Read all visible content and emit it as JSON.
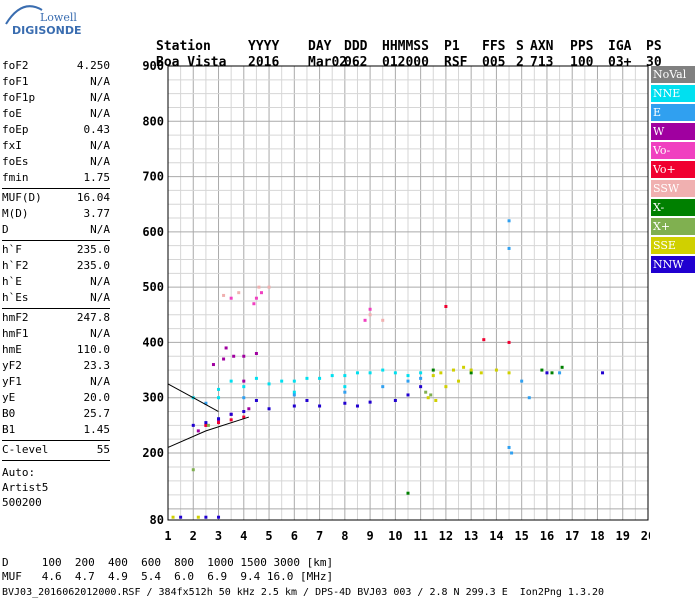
{
  "logo": {
    "line1": "Lowell",
    "line2": "DIGISONDE"
  },
  "header": {
    "labels": [
      "Station",
      "YYYY",
      "DAY",
      "DDD",
      "HHMMSS",
      "P1",
      "FFS",
      "S",
      "AXN",
      "PPS",
      "IGA",
      "PS"
    ],
    "values": [
      "Boa Vista",
      "2016",
      "Mar02",
      "062",
      "012000",
      "RSF",
      "005",
      "2",
      "713",
      "100",
      "03+",
      "30"
    ]
  },
  "params": {
    "group1": [
      {
        "k": "foF2",
        "v": "4.250"
      },
      {
        "k": "foF1",
        "v": "N/A"
      },
      {
        "k": "foF1p",
        "v": "N/A"
      },
      {
        "k": "foE",
        "v": "N/A"
      },
      {
        "k": "foEp",
        "v": "0.43"
      },
      {
        "k": "fxI",
        "v": "N/A"
      },
      {
        "k": "foEs",
        "v": "N/A"
      },
      {
        "k": "fmin",
        "v": "1.75"
      }
    ],
    "group2": [
      {
        "k": "MUF(D)",
        "v": "16.04"
      },
      {
        "k": "M(D)",
        "v": "3.77"
      },
      {
        "k": "D",
        "v": "N/A"
      }
    ],
    "group3": [
      {
        "k": "h`F",
        "v": "235.0"
      },
      {
        "k": "h`F2",
        "v": "235.0"
      },
      {
        "k": "h`E",
        "v": "N/A"
      },
      {
        "k": "h`Es",
        "v": "N/A"
      }
    ],
    "group4": [
      {
        "k": "hmF2",
        "v": "247.8"
      },
      {
        "k": "hmF1",
        "v": "N/A"
      },
      {
        "k": "hmE",
        "v": "110.0"
      },
      {
        "k": "yF2",
        "v": "23.3"
      },
      {
        "k": "yF1",
        "v": "N/A"
      },
      {
        "k": "yE",
        "v": "20.0"
      },
      {
        "k": "B0",
        "v": "25.7"
      },
      {
        "k": "B1",
        "v": "1.45"
      }
    ],
    "group5": [
      {
        "k": "C-level",
        "v": "55"
      }
    ],
    "auto": [
      "Auto:",
      "Artist5",
      "500200"
    ]
  },
  "legend": [
    {
      "label": "NoVal",
      "color": "#808080"
    },
    {
      "label": "NNE",
      "color": "#00e0f0"
    },
    {
      "label": "E",
      "color": "#30a0f0"
    },
    {
      "label": "W",
      "color": "#a000a0"
    },
    {
      "label": "Vo-",
      "color": "#f040c0"
    },
    {
      "label": "Vo+",
      "color": "#f00030"
    },
    {
      "label": "SSW",
      "color": "#f0b0b0"
    },
    {
      "label": "X-",
      "color": "#008000"
    },
    {
      "label": "X+",
      "color": "#80b050"
    },
    {
      "label": "SSE",
      "color": "#d0d000"
    },
    {
      "label": "NNW",
      "color": "#2000d0"
    }
  ],
  "footer": {
    "d_line": "D     100  200  400  600  800  1000 1500 3000 [km]",
    "muf_line": "MUF   4.6  4.7  4.9  5.4  6.0  6.9  9.4 16.0 [MHz]",
    "file_line": "BVJ03_2016062012000.RSF / 384fx512h 50 kHz 2.5 km / DPS-4D BVJ03 003 / 2.8 N 299.3 E  Ion2Png 1.3.20"
  },
  "chart_data": {
    "type": "scatter",
    "title": "",
    "xlabel": "",
    "ylabel": "",
    "xlim": [
      1,
      20
    ],
    "ylim": [
      80,
      900
    ],
    "x_ticks": [
      1,
      2,
      3,
      4,
      5,
      6,
      7,
      8,
      9,
      10,
      11,
      12,
      13,
      14,
      15,
      16,
      17,
      18,
      19,
      20
    ],
    "y_ticks": [
      80,
      200,
      300,
      400,
      500,
      600,
      700,
      800,
      900
    ],
    "grid": true,
    "legend_position": "right",
    "series": [
      {
        "name": "NNE",
        "color": "#00e0f0",
        "points": [
          [
            2.0,
            300
          ],
          [
            3.0,
            315
          ],
          [
            4.0,
            320
          ],
          [
            5.0,
            325
          ],
          [
            6.0,
            330
          ],
          [
            7.0,
            335
          ],
          [
            8.0,
            340
          ],
          [
            9.0,
            345
          ],
          [
            10.0,
            345
          ],
          [
            10.5,
            340
          ],
          [
            11.0,
            345
          ],
          [
            3.5,
            330
          ],
          [
            4.5,
            335
          ],
          [
            5.5,
            330
          ],
          [
            6.5,
            335
          ],
          [
            7.5,
            340
          ],
          [
            8.5,
            345
          ],
          [
            9.5,
            350
          ],
          [
            3.0,
            300
          ],
          [
            6.0,
            310
          ],
          [
            8.0,
            320
          ]
        ]
      },
      {
        "name": "E",
        "color": "#30a0f0",
        "points": [
          [
            2.5,
            290
          ],
          [
            4.0,
            300
          ],
          [
            6.0,
            305
          ],
          [
            8.0,
            310
          ],
          [
            9.5,
            320
          ],
          [
            10.5,
            330
          ],
          [
            11.0,
            335
          ],
          [
            14.5,
            620
          ],
          [
            14.5,
            570
          ],
          [
            14.5,
            210
          ],
          [
            14.6,
            200
          ],
          [
            15.0,
            330
          ],
          [
            15.3,
            300
          ],
          [
            16.5,
            345
          ]
        ]
      },
      {
        "name": "W",
        "color": "#a000a0",
        "points": [
          [
            2.8,
            360
          ],
          [
            3.2,
            370
          ],
          [
            3.6,
            375
          ],
          [
            4.0,
            375
          ],
          [
            4.5,
            380
          ],
          [
            2.5,
            250
          ],
          [
            3.0,
            260
          ],
          [
            3.5,
            270
          ],
          [
            4.0,
            330
          ],
          [
            4.2,
            280
          ],
          [
            2.2,
            240
          ],
          [
            3.3,
            390
          ]
        ]
      },
      {
        "name": "Vo-",
        "color": "#f040c0",
        "points": [
          [
            4.5,
            480
          ],
          [
            4.7,
            490
          ],
          [
            4.4,
            470
          ],
          [
            3.5,
            480
          ],
          [
            8.8,
            440
          ],
          [
            9.0,
            460
          ]
        ]
      },
      {
        "name": "Vo+",
        "color": "#f00030",
        "points": [
          [
            2.5,
            250
          ],
          [
            3.0,
            255
          ],
          [
            3.5,
            260
          ],
          [
            4.0,
            265
          ],
          [
            12.0,
            465
          ],
          [
            13.5,
            405
          ],
          [
            14.5,
            400
          ]
        ]
      },
      {
        "name": "SSW",
        "color": "#f0b0b0",
        "points": [
          [
            3.2,
            485
          ],
          [
            3.8,
            490
          ],
          [
            4.6,
            500
          ],
          [
            5.0,
            500
          ],
          [
            9.0,
            450
          ],
          [
            9.5,
            440
          ]
        ]
      },
      {
        "name": "X-",
        "color": "#008000",
        "points": [
          [
            15.8,
            350
          ],
          [
            16.2,
            345
          ],
          [
            16.6,
            355
          ],
          [
            10.5,
            128
          ],
          [
            11.5,
            350
          ],
          [
            13.0,
            345
          ]
        ]
      },
      {
        "name": "X+",
        "color": "#80b050",
        "points": [
          [
            2.0,
            170
          ],
          [
            11.2,
            310
          ],
          [
            11.4,
            305
          ],
          [
            2.6,
            250
          ]
        ]
      },
      {
        "name": "SSE",
        "color": "#d0d000",
        "points": [
          [
            11.5,
            340
          ],
          [
            11.8,
            345
          ],
          [
            12.3,
            350
          ],
          [
            12.7,
            355
          ],
          [
            13.0,
            350
          ],
          [
            13.4,
            345
          ],
          [
            14.0,
            350
          ],
          [
            14.5,
            345
          ],
          [
            11.3,
            300
          ],
          [
            11.6,
            295
          ],
          [
            12.0,
            320
          ],
          [
            12.5,
            330
          ],
          [
            1.2,
            85
          ],
          [
            2.2,
            85
          ]
        ]
      },
      {
        "name": "NNW",
        "color": "#2000d0",
        "points": [
          [
            2.0,
            250
          ],
          [
            2.5,
            255
          ],
          [
            3.0,
            262
          ],
          [
            3.5,
            270
          ],
          [
            4.0,
            275
          ],
          [
            5.0,
            280
          ],
          [
            6.0,
            285
          ],
          [
            7.0,
            285
          ],
          [
            8.0,
            290
          ],
          [
            9.0,
            292
          ],
          [
            10.0,
            295
          ],
          [
            10.5,
            305
          ],
          [
            11.0,
            320
          ],
          [
            4.5,
            295
          ],
          [
            6.5,
            295
          ],
          [
            8.5,
            285
          ],
          [
            16.0,
            345
          ],
          [
            18.2,
            345
          ],
          [
            1.5,
            85
          ],
          [
            2.5,
            85
          ],
          [
            3.0,
            85
          ]
        ]
      }
    ],
    "lines": [
      {
        "points": [
          [
            1.0,
            210
          ],
          [
            2.5,
            240
          ],
          [
            4.2,
            265
          ]
        ]
      },
      {
        "points": [
          [
            1.0,
            325
          ],
          [
            2.0,
            300
          ],
          [
            3.0,
            275
          ]
        ]
      }
    ]
  }
}
